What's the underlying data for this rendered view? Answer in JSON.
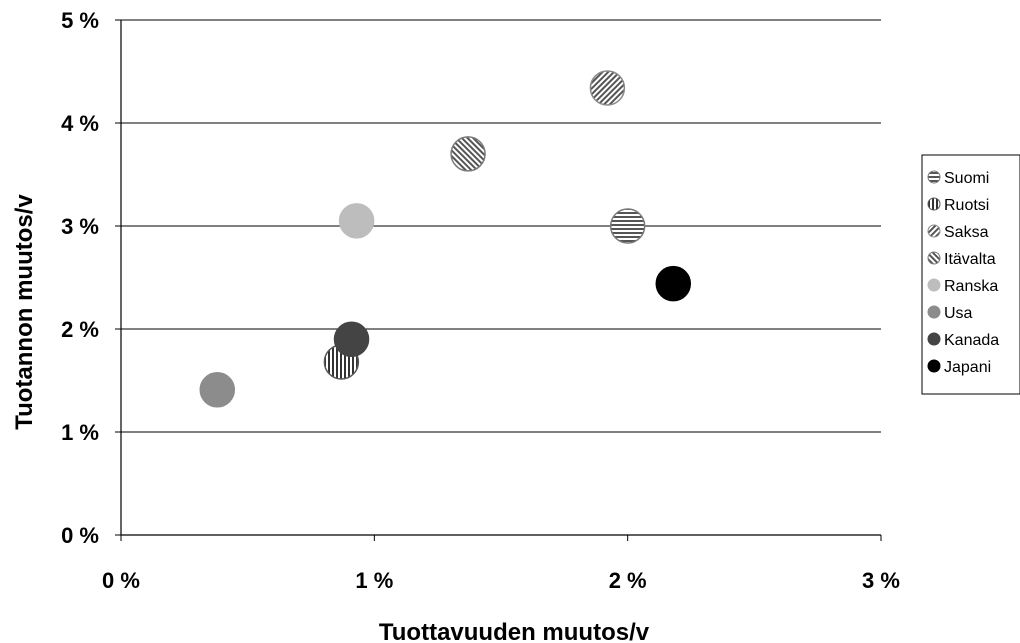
{
  "chart_data": {
    "type": "scatter",
    "title": "",
    "xlabel": "Tuottavuuden muutos/v",
    "ylabel": "Tuotannon muutos/v",
    "xlim": [
      0,
      3
    ],
    "ylim": [
      0,
      5
    ],
    "x_ticks": [
      "0 %",
      "1 %",
      "2 %",
      "3 %"
    ],
    "y_ticks": [
      "0 %",
      "1 %",
      "2 %",
      "3 %",
      "4 %",
      "5 %"
    ],
    "grid": "horizontal",
    "legend_position": "right",
    "series": [
      {
        "name": "Suomi",
        "x": 2.0,
        "y": 3.0,
        "color": "#7a7a7a",
        "pattern": "horizontal"
      },
      {
        "name": "Ruotsi",
        "x": 0.87,
        "y": 1.68,
        "color": "#5a5a5a",
        "pattern": "vertical"
      },
      {
        "name": "Saksa",
        "x": 1.92,
        "y": 4.34,
        "color": "#8a8a8a",
        "pattern": "diag-up"
      },
      {
        "name": "Itävalta",
        "x": 1.37,
        "y": 3.7,
        "color": "#7a7a7a",
        "pattern": "diag-down"
      },
      {
        "name": "Ranska",
        "x": 0.93,
        "y": 3.05,
        "color": "#bdbdbd",
        "pattern": "dots"
      },
      {
        "name": "Usa",
        "x": 0.38,
        "y": 1.41,
        "color": "#8c8c8c",
        "pattern": "dots"
      },
      {
        "name": "Kanada",
        "x": 0.91,
        "y": 1.9,
        "color": "#444444",
        "pattern": "solid"
      },
      {
        "name": "Japani",
        "x": 2.18,
        "y": 2.44,
        "color": "#000000",
        "pattern": "solid"
      }
    ]
  }
}
